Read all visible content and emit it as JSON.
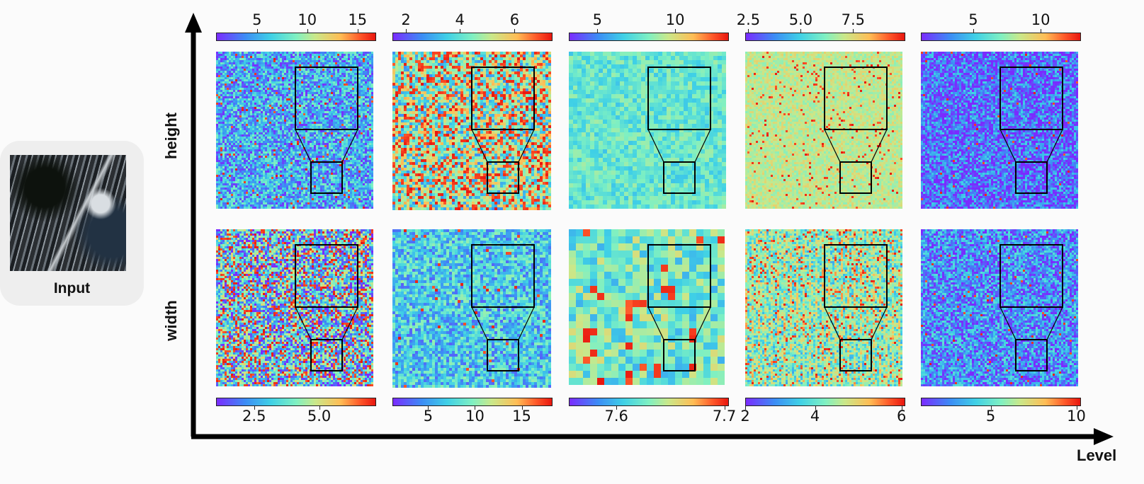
{
  "input": {
    "label": "Input"
  },
  "rows": {
    "top_label": "height",
    "bottom_label": "width"
  },
  "axis": {
    "x_label": "Level"
  },
  "panels": [
    {
      "top": {
        "ticks": [
          "5",
          "10",
          "15"
        ],
        "tick_pos": [
          0.258,
          0.575,
          0.892
        ],
        "palette": "blue-dominant"
      },
      "bottom": {
        "ticks": [
          "2.5",
          "5.0"
        ],
        "tick_pos": [
          0.24,
          0.65
        ],
        "palette": "mixed-red"
      }
    },
    {
      "top": {
        "ticks": [
          "2",
          "4",
          "6"
        ],
        "tick_pos": [
          0.085,
          0.425,
          0.77
        ],
        "palette": "red-heavy"
      },
      "bottom": {
        "ticks": [
          "5",
          "10",
          "15"
        ],
        "tick_pos": [
          0.225,
          0.52,
          0.815
        ],
        "palette": "blue-cyan"
      }
    },
    {
      "top": {
        "ticks": [
          "5",
          "10"
        ],
        "tick_pos": [
          0.18,
          0.67
        ],
        "palette": "cyan-grid"
      },
      "bottom": {
        "ticks": [
          "7.6",
          "7.7"
        ],
        "tick_pos": [
          0.3,
          0.98
        ],
        "palette": "smooth-cyan"
      }
    },
    {
      "top": {
        "ticks": [
          "2.5",
          "5.0",
          "7.5"
        ],
        "tick_pos": [
          0.02,
          0.35,
          0.68
        ],
        "palette": "green-orange"
      },
      "bottom": {
        "ticks": [
          "2",
          "4",
          "6"
        ],
        "tick_pos": [
          0.0,
          0.44,
          0.985
        ],
        "palette": "striped"
      }
    },
    {
      "top": {
        "ticks": [
          "5",
          "10"
        ],
        "tick_pos": [
          0.33,
          0.755
        ],
        "palette": "purple"
      },
      "bottom": {
        "ticks": [
          "5",
          "10"
        ],
        "tick_pos": [
          0.44,
          0.98
        ],
        "palette": "purple-blue"
      }
    }
  ],
  "colors": {
    "arrow": "#000000",
    "zoom_box": "#000000"
  }
}
